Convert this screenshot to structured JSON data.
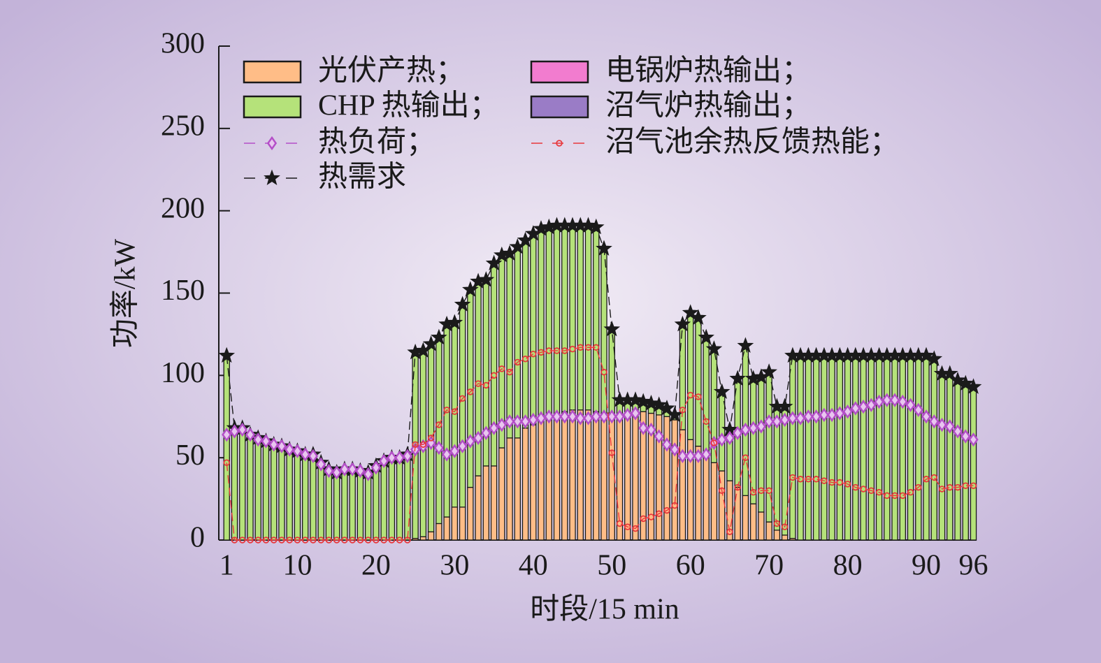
{
  "chart_data": {
    "type": "bar",
    "stacked": true,
    "xlabel": "时段/15 min",
    "ylabel": "功率/kW",
    "x": [
      1,
      2,
      3,
      4,
      5,
      6,
      7,
      8,
      9,
      10,
      11,
      12,
      13,
      14,
      15,
      16,
      17,
      18,
      19,
      20,
      21,
      22,
      23,
      24,
      25,
      26,
      27,
      28,
      29,
      30,
      31,
      32,
      33,
      34,
      35,
      36,
      37,
      38,
      39,
      40,
      41,
      42,
      43,
      44,
      45,
      46,
      47,
      48,
      49,
      50,
      51,
      52,
      53,
      54,
      55,
      56,
      57,
      58,
      59,
      60,
      61,
      62,
      63,
      64,
      65,
      66,
      67,
      68,
      69,
      70,
      71,
      72,
      73,
      74,
      75,
      76,
      77,
      78,
      79,
      80,
      81,
      82,
      83,
      84,
      85,
      86,
      87,
      88,
      89,
      90,
      91,
      92,
      93,
      94,
      95,
      96
    ],
    "xlim": [
      0,
      96.4
    ],
    "xticks": [
      1,
      10,
      20,
      30,
      40,
      50,
      60,
      70,
      80,
      90,
      96
    ],
    "ylim": [
      0,
      300
    ],
    "yticks": [
      0,
      50,
      100,
      150,
      200,
      250,
      300
    ],
    "series": [
      {
        "name": "光伏产热；",
        "type": "bar",
        "color": "#ffbd87",
        "values": [
          0,
          0,
          0,
          0,
          0,
          0,
          0,
          0,
          0,
          0,
          0,
          0,
          0,
          0,
          0,
          0,
          0,
          0,
          0,
          0,
          0,
          0,
          0,
          0,
          1,
          2,
          5,
          10,
          14,
          20,
          20,
          32,
          39,
          45,
          45,
          56,
          62,
          62,
          68,
          70,
          73,
          75,
          77,
          78,
          79,
          79,
          79,
          78,
          77,
          76,
          76,
          77,
          78,
          78,
          77,
          76,
          75,
          73,
          67,
          61,
          57,
          52,
          47,
          42,
          36,
          32,
          27,
          22,
          17,
          11,
          6,
          3,
          1,
          0,
          0,
          0,
          0,
          0,
          0,
          0,
          0,
          0,
          0,
          0,
          0,
          0,
          0,
          0,
          0,
          0,
          0,
          0,
          0,
          0,
          0,
          0
        ]
      },
      {
        "name": "CHP 热输出；",
        "type": "bar",
        "color": "#b5e27a",
        "values": [
          112,
          68,
          68,
          64,
          62,
          60,
          58,
          57,
          55,
          54,
          52,
          52,
          47,
          43,
          41,
          43,
          43,
          42,
          41,
          45,
          48,
          50,
          50,
          52,
          113,
          113,
          114,
          113,
          117,
          112,
          123,
          120,
          118,
          113,
          123,
          117,
          112,
          116,
          114,
          116,
          116,
          115,
          114,
          113,
          112,
          112,
          112,
          112,
          100,
          52,
          9,
          8,
          7,
          6,
          6,
          6,
          5,
          3,
          64,
          77,
          78,
          71,
          69,
          48,
          31,
          66,
          91,
          76,
          82,
          91,
          75,
          78,
          111,
          112,
          112,
          112,
          112,
          112,
          112,
          112,
          112,
          112,
          112,
          112,
          112,
          112,
          112,
          112,
          112,
          112,
          110,
          101,
          101,
          97,
          95,
          93
        ]
      },
      {
        "name": "电锅炉热输出；",
        "type": "bar",
        "color": "#f27ccf",
        "values": [
          0,
          0,
          0,
          0,
          0,
          0,
          0,
          0,
          0,
          0,
          0,
          0,
          0,
          0,
          0,
          0,
          0,
          0,
          0,
          0,
          0,
          0,
          0,
          0,
          0,
          0,
          0,
          0,
          0,
          0,
          0,
          0,
          0,
          0,
          0,
          0,
          0,
          0,
          0,
          0,
          0,
          0,
          0,
          0,
          0,
          0,
          0,
          0,
          0,
          0,
          0,
          0,
          0,
          0,
          0,
          0,
          0,
          0,
          0,
          0,
          0,
          0,
          0,
          0,
          0,
          0,
          0,
          0,
          0,
          0,
          0,
          0,
          0,
          0,
          0,
          0,
          0,
          0,
          0,
          0,
          0,
          0,
          0,
          0,
          0,
          0,
          0,
          0,
          0,
          0,
          0,
          0,
          0,
          0,
          0,
          0
        ]
      },
      {
        "name": "沼气炉热输出；",
        "type": "bar",
        "color": "#9a7cc6",
        "values": [
          0,
          0,
          0,
          0,
          0,
          0,
          0,
          0,
          0,
          0,
          0,
          0,
          0,
          0,
          0,
          0,
          0,
          0,
          0,
          0,
          0,
          0,
          0,
          0,
          0,
          0,
          0,
          0,
          0,
          0,
          0,
          0,
          0,
          0,
          0,
          0,
          0,
          0,
          0,
          0,
          0,
          0,
          0,
          0,
          0,
          0,
          0,
          0,
          0,
          0,
          0,
          0,
          0,
          0,
          0,
          0,
          0,
          0,
          0,
          0,
          0,
          0,
          0,
          0,
          0,
          0,
          0,
          0,
          0,
          0,
          0,
          0,
          0,
          0,
          0,
          0,
          0,
          0,
          0,
          0,
          0,
          0,
          0,
          0,
          0,
          0,
          0,
          0,
          0,
          0,
          0,
          0,
          0,
          0,
          0,
          0
        ]
      },
      {
        "name": "热负荷；",
        "type": "line",
        "marker": "diamond",
        "color": "#b44fc8",
        "values": [
          64,
          66,
          67,
          64,
          61,
          60,
          58,
          57,
          55,
          54,
          52,
          51,
          46,
          42,
          41,
          43,
          43,
          42,
          40,
          44,
          48,
          50,
          50,
          51,
          55,
          57,
          59,
          56,
          52,
          54,
          57,
          60,
          62,
          65,
          68,
          70,
          72,
          72,
          72,
          73,
          74,
          75,
          75,
          75,
          75,
          74,
          74,
          75,
          75,
          75,
          75,
          76,
          77,
          68,
          67,
          63,
          58,
          55,
          51,
          51,
          51,
          52,
          59,
          61,
          62,
          65,
          67,
          68,
          69,
          72,
          72,
          73,
          74,
          74,
          75,
          75,
          76,
          76,
          77,
          78,
          80,
          81,
          82,
          84,
          85,
          85,
          84,
          82,
          79,
          75,
          72,
          70,
          69,
          66,
          63,
          61
        ]
      },
      {
        "name": "沼气池余热反馈热能；",
        "type": "line",
        "marker": "circle",
        "color": "#e8383d",
        "values": [
          47,
          0,
          0,
          0,
          0,
          0,
          0,
          0,
          0,
          0,
          0,
          0,
          0,
          0,
          0,
          0,
          0,
          0,
          0,
          0,
          0,
          0,
          0,
          0,
          58,
          58,
          62,
          70,
          79,
          78,
          86,
          90,
          95,
          94,
          100,
          104,
          102,
          108,
          110,
          113,
          114,
          115,
          115,
          115,
          116,
          117,
          117,
          117,
          102,
          53,
          10,
          8,
          7,
          13,
          14,
          16,
          18,
          21,
          79,
          88,
          87,
          72,
          59,
          30,
          5,
          32,
          50,
          29,
          30,
          30,
          10,
          8,
          38,
          37,
          37,
          37,
          36,
          35,
          35,
          34,
          32,
          31,
          30,
          29,
          27,
          27,
          27,
          29,
          32,
          37,
          38,
          31,
          32,
          32,
          33,
          33
        ]
      },
      {
        "name": "热需求",
        "type": "line",
        "marker": "star",
        "color": "#1a1a1a",
        "values": [
          112,
          68,
          68,
          64,
          62,
          60,
          58,
          57,
          55,
          54,
          52,
          52,
          47,
          43,
          41,
          43,
          43,
          42,
          41,
          45,
          48,
          50,
          50,
          52,
          114,
          115,
          119,
          123,
          131,
          132,
          143,
          152,
          157,
          158,
          168,
          173,
          174,
          178,
          182,
          186,
          189,
          190,
          191,
          191,
          191,
          191,
          191,
          190,
          177,
          128,
          85,
          85,
          85,
          84,
          83,
          82,
          80,
          76,
          131,
          138,
          135,
          123,
          116,
          90,
          67,
          98,
          118,
          98,
          99,
          102,
          81,
          81,
          112,
          112,
          112,
          112,
          112,
          112,
          112,
          112,
          112,
          112,
          112,
          112,
          112,
          112,
          112,
          112,
          112,
          112,
          110,
          101,
          101,
          97,
          95,
          93
        ]
      }
    ]
  }
}
